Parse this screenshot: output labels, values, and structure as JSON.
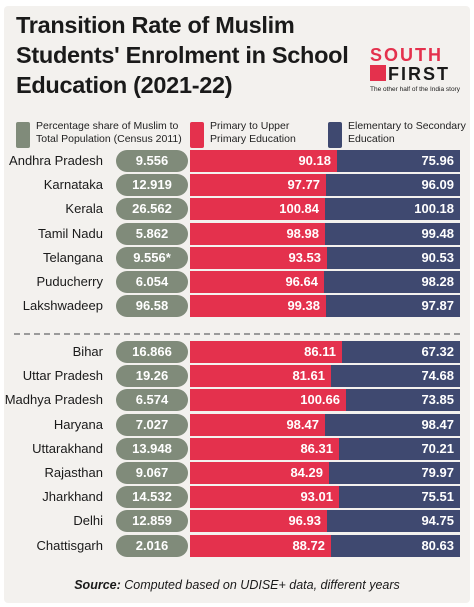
{
  "title": "Transition Rate of Muslim Students' Enrolment in School Education (2021-22)",
  "logo": {
    "line1": "SOUTH",
    "line2": "FIRST",
    "tagline": "The other half of the India story"
  },
  "colors": {
    "share": "#808b7a",
    "primary": "#e4314d",
    "elementary": "#3f4970"
  },
  "source": {
    "label": "Source:",
    "text": "Computed based on UDISE+ data, different years"
  },
  "chart_data": {
    "type": "bar",
    "title": "Transition Rate of Muslim Students' Enrolment in School Education (2021-22)",
    "series": [
      {
        "name": "Percentage share of Muslim to Total Population (Census 2011)",
        "color": "#808b7a"
      },
      {
        "name": "Primary to Upper Primary Education",
        "color": "#e4314d"
      },
      {
        "name": "Elementary to Secondary Education",
        "color": "#3f4970"
      }
    ],
    "groups": [
      {
        "rows": [
          {
            "state": "Andhra Pradesh",
            "share": "9.556",
            "primary": 90.18,
            "elementary": 75.96
          },
          {
            "state": "Karnataka",
            "share": "12.919",
            "primary": 97.77,
            "elementary": 96.09
          },
          {
            "state": "Kerala",
            "share": "26.562",
            "primary": 100.84,
            "elementary": 100.18
          },
          {
            "state": "Tamil Nadu",
            "share": "5.862",
            "primary": 98.98,
            "elementary": 99.48
          },
          {
            "state": "Telangana",
            "share": "9.556*",
            "primary": 93.53,
            "elementary": 90.53
          },
          {
            "state": "Puducherry",
            "share": "6.054",
            "primary": 96.64,
            "elementary": 98.28
          },
          {
            "state": "Lakshwadeep",
            "share": "96.58",
            "primary": 99.38,
            "elementary": 97.87
          }
        ]
      },
      {
        "rows": [
          {
            "state": "Bihar",
            "share": "16.866",
            "primary": 86.11,
            "elementary": 67.32
          },
          {
            "state": "Uttar Pradesh",
            "share": "19.26",
            "primary": 81.61,
            "elementary": 74.68
          },
          {
            "state": "Madhya Pradesh",
            "share": "6.574",
            "primary": 100.66,
            "elementary": 73.85
          },
          {
            "state": "Haryana",
            "share": "7.027",
            "primary": 98.47,
            "elementary": 98.47
          },
          {
            "state": "Uttarakhand",
            "share": "13.948",
            "primary": 86.31,
            "elementary": 70.21
          },
          {
            "state": "Rajasthan",
            "share": "9.067",
            "primary": 84.29,
            "elementary": 79.97
          },
          {
            "state": "Jharkhand",
            "share": "14.532",
            "primary": 93.01,
            "elementary": 75.51
          },
          {
            "state": "Delhi",
            "share": "12.859",
            "primary": 96.93,
            "elementary": 94.75
          },
          {
            "state": "Chattisgarh",
            "share": "2.016",
            "primary": 88.72,
            "elementary": 80.63
          }
        ]
      }
    ]
  }
}
